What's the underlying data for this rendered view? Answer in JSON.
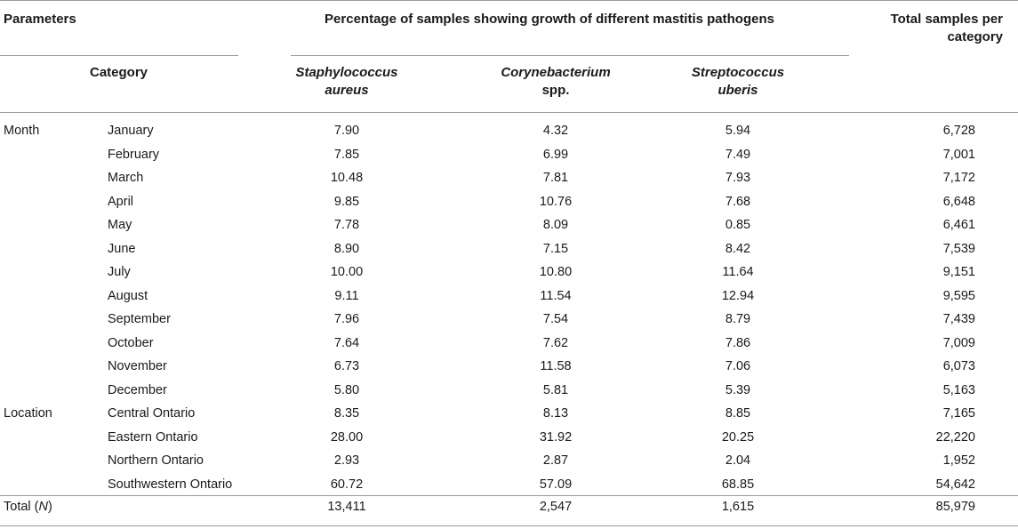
{
  "header": {
    "parameters": "Parameters",
    "category": "Category",
    "group_title": "Percentage of samples showing growth of different mastitis pathogens",
    "total_title": "Total samples per category",
    "pathogens": [
      {
        "genus": "Staphylococcus",
        "species": "aureus"
      },
      {
        "genus": "Corynebacterium",
        "species": "spp."
      },
      {
        "genus": "Streptococcus",
        "species": "uberis"
      }
    ]
  },
  "rows": [
    {
      "param": "Month",
      "category": "January",
      "staph": "7.90",
      "coryne": "4.32",
      "strep": "5.94",
      "total": "6,728"
    },
    {
      "param": "",
      "category": "February",
      "staph": "7.85",
      "coryne": "6.99",
      "strep": "7.49",
      "total": "7,001"
    },
    {
      "param": "",
      "category": "March",
      "staph": "10.48",
      "coryne": "7.81",
      "strep": "7.93",
      "total": "7,172"
    },
    {
      "param": "",
      "category": "April",
      "staph": "9.85",
      "coryne": "10.76",
      "strep": "7.68",
      "total": "6,648"
    },
    {
      "param": "",
      "category": "May",
      "staph": "7.78",
      "coryne": "8.09",
      "strep": "0.85",
      "total": "6,461"
    },
    {
      "param": "",
      "category": "June",
      "staph": "8.90",
      "coryne": "7.15",
      "strep": "8.42",
      "total": "7,539"
    },
    {
      "param": "",
      "category": "July",
      "staph": "10.00",
      "coryne": "10.80",
      "strep": "11.64",
      "total": "9,151"
    },
    {
      "param": "",
      "category": "August",
      "staph": "9.11",
      "coryne": "11.54",
      "strep": "12.94",
      "total": "9,595"
    },
    {
      "param": "",
      "category": "September",
      "staph": "7.96",
      "coryne": "7.54",
      "strep": "8.79",
      "total": "7,439"
    },
    {
      "param": "",
      "category": "October",
      "staph": "7.64",
      "coryne": "7.62",
      "strep": "7.86",
      "total": "7,009"
    },
    {
      "param": "",
      "category": "November",
      "staph": "6.73",
      "coryne": "11.58",
      "strep": "7.06",
      "total": "6,073"
    },
    {
      "param": "",
      "category": "December",
      "staph": "5.80",
      "coryne": "5.81",
      "strep": "5.39",
      "total": "5,163"
    },
    {
      "param": "Location",
      "category": "Central Ontario",
      "staph": "8.35",
      "coryne": "8.13",
      "strep": "8.85",
      "total": "7,165"
    },
    {
      "param": "",
      "category": "Eastern Ontario",
      "staph": "28.00",
      "coryne": "31.92",
      "strep": "20.25",
      "total": "22,220"
    },
    {
      "param": "",
      "category": "Northern Ontario",
      "staph": "2.93",
      "coryne": "2.87",
      "strep": "2.04",
      "total": "1,952"
    },
    {
      "param": "",
      "category": "Southwestern Ontario",
      "staph": "60.72",
      "coryne": "57.09",
      "strep": "68.85",
      "total": "54,642"
    }
  ],
  "total_row": {
    "label": "Total (",
    "label_n": "N",
    "label_end": ")",
    "staph": "13,411",
    "coryne": "2,547",
    "strep": "1,615",
    "total": "85,979"
  }
}
